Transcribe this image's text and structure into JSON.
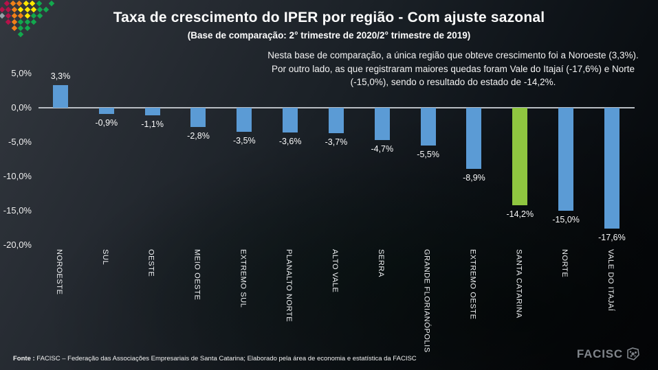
{
  "slide": {
    "title": "Taxa de crescimento do IPER por região - Com ajuste sazonal",
    "subtitle": "(Base de comparação: 2° trimestre de 2020/2° trimestre de 2019)",
    "annotation": "Nesta base de comparação, a única região que obteve crescimento foi a Noroeste (3,3%). Por outro lado, as que registraram maiores quedas foram Vale do Itajaí (-17,6%) e Norte (-15,0%), sendo o resultado do estado de -14,2%.",
    "footer_label": "Fonte :",
    "footer_text": " FACISC – Federação das Associações Empresariais de Santa Catarina; Elaborado pela área de economia e estatística da FACISC",
    "brand_name": "FACISC"
  },
  "colors": {
    "bar_blue": "#5B9BD5",
    "bar_green": "#8FC640",
    "axis_line": "#B9BEC4",
    "logo_crimson": "#B5124A",
    "logo_orange": "#F08019",
    "logo_yellow": "#FFE800",
    "logo_green": "#12A84E",
    "logo_gray": "#97A0A8"
  },
  "chart_data": {
    "type": "bar",
    "title": "Taxa de crescimento do IPER por região - Com ajuste sazonal",
    "xlabel": "",
    "ylabel": "",
    "categories": [
      "NOROESTE",
      "SUL",
      "OESTE",
      "MEIO OESTE",
      "EXTREMO SUL",
      "PLANALTO NORTE",
      "ALTO VALE",
      "SERRA",
      "GRANDE FLORIANÓPOLIS",
      "EXTREMO OESTE",
      "SANTA CATARINA",
      "NORTE",
      "VALE DO ITAJAÍ"
    ],
    "values": [
      3.3,
      -0.9,
      -1.1,
      -2.8,
      -3.5,
      -3.6,
      -3.7,
      -4.7,
      -5.5,
      -8.9,
      -14.2,
      -15.0,
      -17.6
    ],
    "value_labels": [
      "3,3%",
      "-0,9%",
      "-1,1%",
      "-2,8%",
      "-3,5%",
      "-3,6%",
      "-3,7%",
      "-4,7%",
      "-5,5%",
      "-8,9%",
      "-14,2%",
      "-15,0%",
      "-17,6%"
    ],
    "highlight_index": 10,
    "highlight_category": "SANTA CATARINA",
    "y_ticks": [
      {
        "label": "5,0%",
        "value": 5
      },
      {
        "label": "0,0%",
        "value": 0
      },
      {
        "label": "-5,0%",
        "value": -5
      },
      {
        "label": "-10,0%",
        "value": -10
      },
      {
        "label": "-15,0%",
        "value": -15
      },
      {
        "label": "-20,0%",
        "value": -20
      }
    ],
    "ylim": [
      -20,
      5
    ],
    "grid": false,
    "legend": false
  }
}
